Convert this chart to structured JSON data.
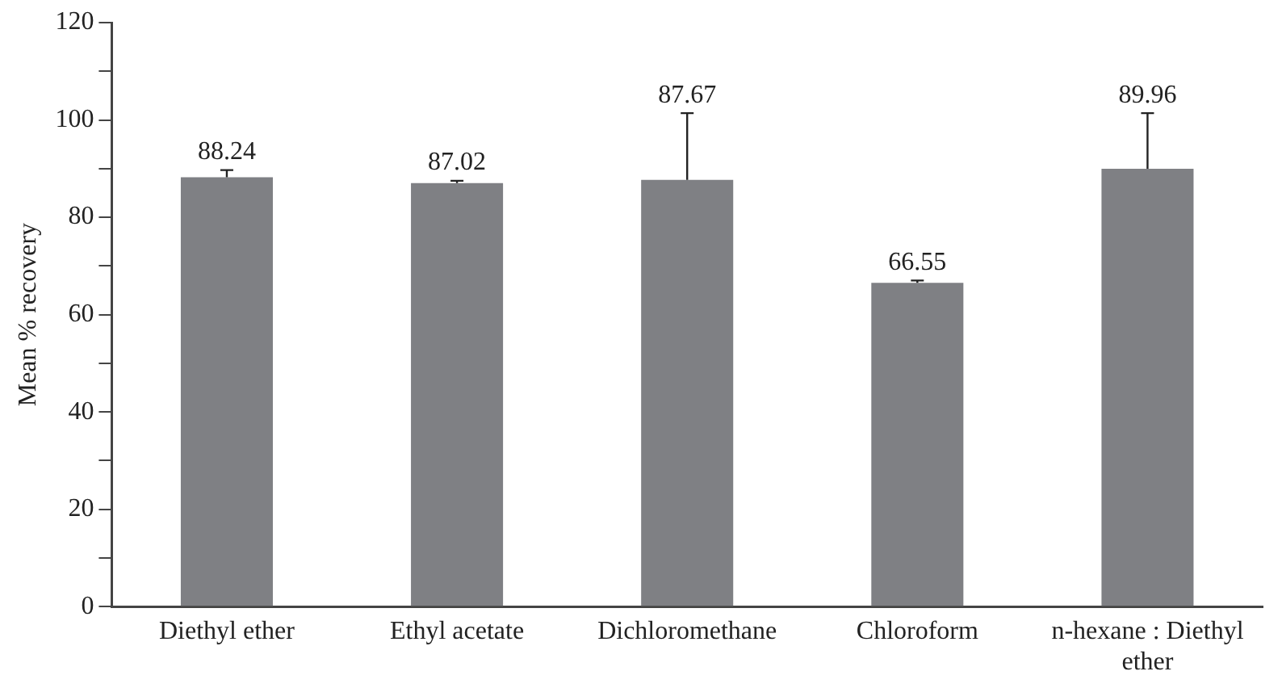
{
  "chart_data": {
    "type": "bar",
    "ylabel": "Mean % recovery",
    "categories": [
      "Diethyl ether",
      "Ethyl acetate",
      "Dichloromethane",
      "Chloroform",
      "n-hexane : Diethyl ether"
    ],
    "values": [
      88.24,
      87.02,
      87.67,
      66.55,
      89.96
    ],
    "errors": [
      [
        88.24,
        89.7
      ],
      [
        87.02,
        87.5
      ],
      [
        87.67,
        101.4
      ],
      [
        66.55,
        67.0
      ],
      [
        89.96,
        101.4
      ]
    ],
    "color": "#7f8084",
    "ylim": [
      0,
      120
    ],
    "yticks": [
      0,
      {
        "value": 10,
        "label": null
      },
      20,
      {
        "value": 30,
        "label": null
      },
      40,
      {
        "value": 50,
        "label": null
      },
      60,
      {
        "value": 70,
        "label": null
      },
      80,
      {
        "value": 90,
        "label": null
      },
      100,
      {
        "value": 110,
        "label": null
      },
      120
    ],
    "data_labels": true,
    "grid": false,
    "legend": false
  }
}
